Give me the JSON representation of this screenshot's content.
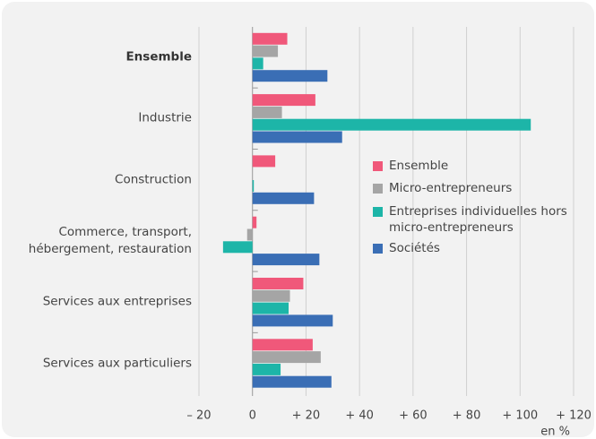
{
  "chart_data": {
    "type": "bar",
    "orientation": "horizontal",
    "categories": [
      "Ensemble",
      "Industrie",
      "Construction",
      "Commerce, transport,\nhébergement, restauration",
      "Services aux entreprises",
      "Services aux particuliers"
    ],
    "series": [
      {
        "name": "Ensemble",
        "color": "#f0587a",
        "values": [
          13,
          23.5,
          8.5,
          1.5,
          19,
          22.5
        ]
      },
      {
        "name": "Micro-entrepreneurs",
        "color": "#a5a5a5",
        "values": [
          9.5,
          11,
          0,
          -2,
          14,
          25.5
        ]
      },
      {
        "name": "Entreprises individuelles hors micro-entrepreneurs",
        "color": "#1db5a8",
        "values": [
          4,
          104,
          0.5,
          -11,
          13.5,
          10.5
        ]
      },
      {
        "name": "Sociétés",
        "color": "#3a6eb5",
        "values": [
          28,
          33.5,
          23,
          25,
          30,
          29.5
        ]
      }
    ],
    "xlim": [
      -20,
      120
    ],
    "xticks": [
      {
        "value": -20,
        "label": "– 20"
      },
      0,
      {
        "value": 20,
        "label": "+ 20"
      },
      {
        "value": 40,
        "label": "+ 40"
      },
      {
        "value": 60,
        "label": "+ 60"
      },
      {
        "value": 80,
        "label": "+ 80"
      },
      {
        "value": 100,
        "label": "+ 100"
      },
      {
        "value": 120,
        "label": "+ 120"
      }
    ],
    "xlabel": "en %",
    "grid": true,
    "legend": "right"
  }
}
